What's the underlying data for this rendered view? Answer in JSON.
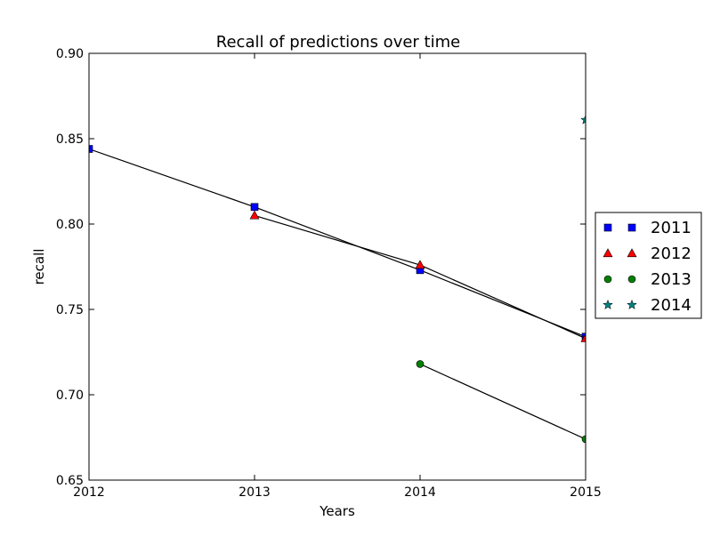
{
  "chart_data": {
    "type": "line",
    "title": "Recall of predictions over time",
    "xlabel": "Years",
    "ylabel": "recall",
    "xlim": [
      2012,
      2015
    ],
    "ylim": [
      0.65,
      0.9
    ],
    "xticks": [
      "2012",
      "2013",
      "2014",
      "2015"
    ],
    "xtick_values": [
      2012,
      2013,
      2014,
      2015
    ],
    "yticks": [
      "0.65",
      "0.70",
      "0.75",
      "0.80",
      "0.85",
      "0.90"
    ],
    "ytick_values": [
      0.65,
      0.7,
      0.75,
      0.8,
      0.85,
      0.9
    ],
    "grid": false,
    "legend_position": "outside-right",
    "series": [
      {
        "name": "2011",
        "marker": "square",
        "color": "#0000ff",
        "x": [
          2012,
          2013,
          2014,
          2015
        ],
        "y": [
          0.844,
          0.81,
          0.773,
          0.734
        ]
      },
      {
        "name": "2012",
        "marker": "triangle",
        "color": "#ff0000",
        "x": [
          2013,
          2014,
          2015
        ],
        "y": [
          0.805,
          0.776,
          0.733
        ]
      },
      {
        "name": "2013",
        "marker": "circle",
        "color": "#008000",
        "x": [
          2014,
          2015
        ],
        "y": [
          0.718,
          0.674
        ]
      },
      {
        "name": "2014",
        "marker": "star",
        "color": "#008080",
        "x": [
          2015
        ],
        "y": [
          0.861
        ]
      }
    ]
  }
}
